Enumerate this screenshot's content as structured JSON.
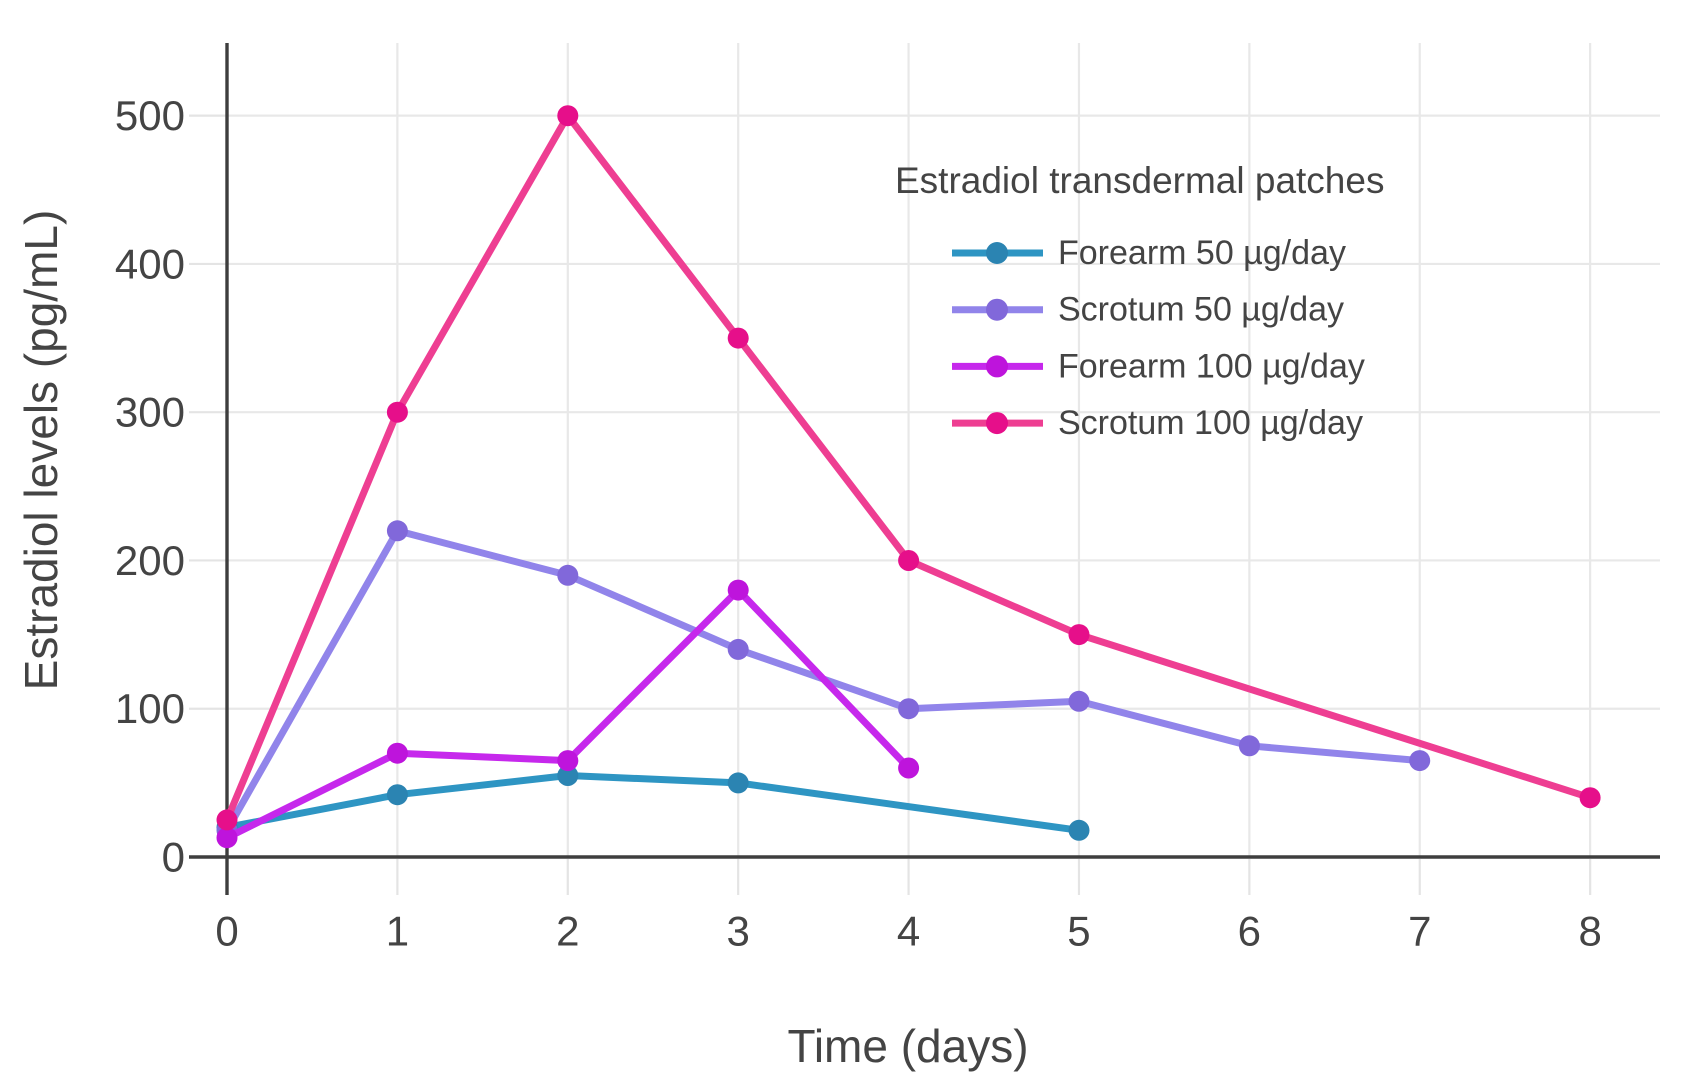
{
  "chart_data": {
    "type": "line",
    "title": "",
    "legend_title": "Estradiol transdermal patches",
    "xlabel": "Time (days)",
    "ylabel": "Estradiol levels (pg/mL)",
    "xlim": [
      0,
      8.41
    ],
    "ylim": [
      0,
      549
    ],
    "xticks": [
      0,
      1,
      2,
      3,
      4,
      5,
      6,
      7,
      8
    ],
    "yticks": [
      0,
      100,
      200,
      300,
      400,
      500
    ],
    "grid": true,
    "legend_position": "inside-top-right",
    "series": [
      {
        "name": "Forearm 50 µg/day",
        "slug": "forearm-50",
        "x": [
          0,
          1,
          2,
          3,
          5
        ],
        "y": [
          20,
          42,
          55,
          50,
          18
        ],
        "line_color": "#2E95C3",
        "marker_color": "#2B84B2"
      },
      {
        "name": "Scrotum 50 µg/day",
        "slug": "scrotum-50",
        "x": [
          0,
          1,
          2,
          3,
          4,
          5,
          6,
          7
        ],
        "y": [
          18,
          220,
          190,
          140,
          100,
          105,
          75,
          65
        ],
        "line_color": "#9184EA",
        "marker_color": "#8168DA"
      },
      {
        "name": "Forearm 100 µg/day",
        "slug": "forearm-100",
        "x": [
          0,
          1,
          2,
          3,
          4
        ],
        "y": [
          13,
          70,
          65,
          180,
          60
        ],
        "line_color": "#C628EC",
        "marker_color": "#BE14DC"
      },
      {
        "name": "Scrotum 100 µg/day",
        "slug": "scrotum-100",
        "x": [
          0,
          1,
          2,
          3,
          4,
          5,
          8
        ],
        "y": [
          25,
          300,
          500,
          350,
          200,
          150,
          40
        ],
        "line_color": "#EE3E92",
        "marker_color": "#E60F8A"
      }
    ]
  },
  "colors": {
    "background": "#FFFFFF",
    "grid": "#E8E8E8",
    "tick_mark": "#E4E4E4",
    "axis_line": "#3E3E3E",
    "text": "#444444"
  }
}
